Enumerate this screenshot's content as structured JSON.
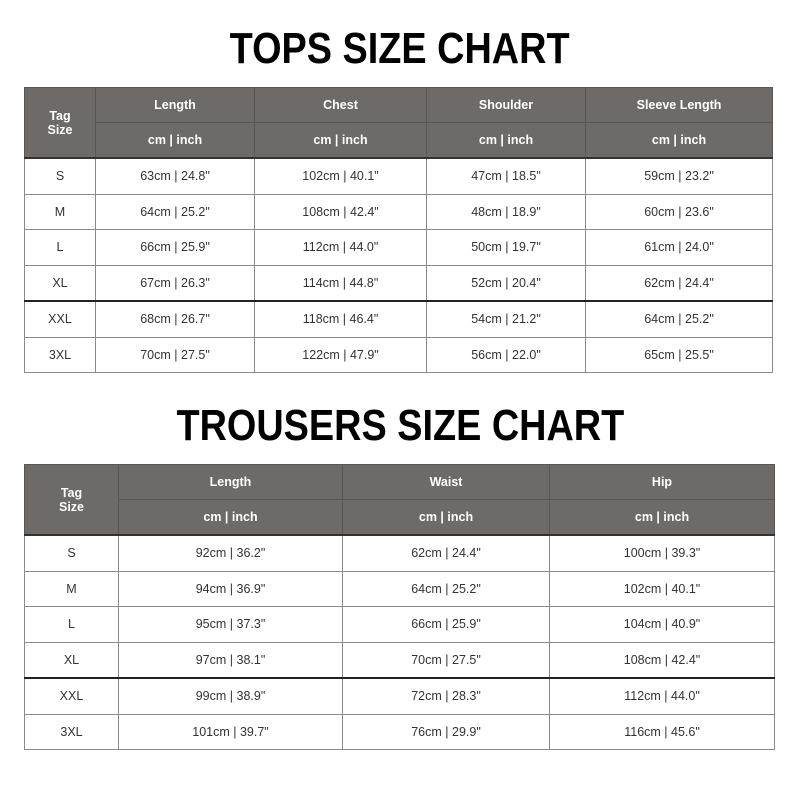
{
  "tops": {
    "title": "TOPS SIZE CHART",
    "tag_header": [
      "Tag",
      "Size"
    ],
    "columns": [
      "Length",
      "Chest",
      "Shoulder",
      "Sleeve Length"
    ],
    "unit_label": "cm | inch",
    "rows": [
      {
        "size": "S",
        "values": [
          "63cm | 24.8\"",
          "102cm | 40.1\"",
          "47cm | 18.5\"",
          "59cm | 23.2\""
        ]
      },
      {
        "size": "M",
        "values": [
          "64cm | 25.2\"",
          "108cm | 42.4\"",
          "48cm | 18.9\"",
          "60cm | 23.6\""
        ]
      },
      {
        "size": "L",
        "values": [
          "66cm | 25.9\"",
          "112cm | 44.0\"",
          "50cm | 19.7\"",
          "61cm | 24.0\""
        ]
      },
      {
        "size": "XL",
        "values": [
          "67cm | 26.3\"",
          "114cm | 44.8\"",
          "52cm | 20.4\"",
          "62cm | 24.4\""
        ]
      },
      {
        "size": "XXL",
        "values": [
          "68cm | 26.7\"",
          "118cm | 46.4\"",
          "54cm | 21.2\"",
          "64cm | 25.2\""
        ]
      },
      {
        "size": "3XL",
        "values": [
          "70cm | 27.5\"",
          "122cm | 47.9\"",
          "56cm | 22.0\"",
          "65cm | 25.5\""
        ]
      }
    ]
  },
  "trousers": {
    "title": "TROUSERS SIZE CHART",
    "tag_header": [
      "Tag",
      "Size"
    ],
    "columns": [
      "Length",
      "Waist",
      "Hip"
    ],
    "unit_label": "cm | inch",
    "rows": [
      {
        "size": "S",
        "values": [
          "92cm | 36.2\"",
          "62cm | 24.4\"",
          "100cm | 39.3\""
        ]
      },
      {
        "size": "M",
        "values": [
          "94cm | 36.9\"",
          "64cm | 25.2\"",
          "102cm | 40.1\""
        ]
      },
      {
        "size": "L",
        "values": [
          "95cm | 37.3\"",
          "66cm | 25.9\"",
          "104cm | 40.9\""
        ]
      },
      {
        "size": "XL",
        "values": [
          "97cm | 38.1\"",
          "70cm | 27.5\"",
          "108cm | 42.4\""
        ]
      },
      {
        "size": "XXL",
        "values": [
          "99cm | 38.9\"",
          "72cm | 28.3\"",
          "112cm | 44.0\""
        ]
      },
      {
        "size": "3XL",
        "values": [
          "101cm | 39.7\"",
          "76cm | 29.9\"",
          "116cm | 45.6\""
        ]
      }
    ]
  },
  "colors": {
    "header_bg": "#6e6a67",
    "header_text": "#ffffff"
  }
}
